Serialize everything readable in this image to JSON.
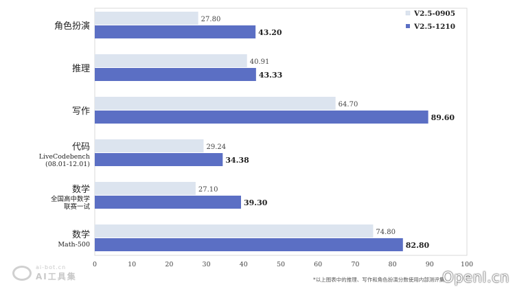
{
  "chart_data": {
    "type": "bar",
    "orientation": "horizontal",
    "categories": [
      {
        "lines": [
          "角色扮演"
        ]
      },
      {
        "lines": [
          "推理"
        ]
      },
      {
        "lines": [
          "写作"
        ]
      },
      {
        "lines": [
          "代码",
          "LiveCodebench",
          "(08.01-12.01)"
        ]
      },
      {
        "lines": [
          "数学",
          "全国高中数学",
          "联赛一试"
        ]
      },
      {
        "lines": [
          "数学",
          "Math-500"
        ]
      }
    ],
    "series": [
      {
        "name": "V2.5-0905",
        "color": "#dce4ef",
        "values": [
          27.8,
          40.91,
          64.7,
          29.24,
          27.1,
          74.8
        ],
        "labels": [
          "27.80",
          "40.91",
          "64.70",
          "29.24",
          "27.10",
          "74.80"
        ]
      },
      {
        "name": "V2.5-1210",
        "color": "#5b6fc4",
        "values": [
          43.2,
          43.33,
          89.6,
          34.38,
          39.3,
          82.8
        ],
        "labels": [
          "43.20",
          "43.33",
          "89.60",
          "34.38",
          "39.30",
          "82.80"
        ]
      }
    ],
    "xlim": [
      0,
      100
    ],
    "xticks": [
      0,
      10,
      20,
      30,
      40,
      50,
      60,
      70,
      80,
      90,
      100
    ],
    "legend_position": "top-right",
    "grid": false,
    "title": "",
    "xlabel": "",
    "ylabel": ""
  },
  "footnote": "*以上图表中的推理、写作和角色扮演分数使用内部测评集",
  "watermark_left": {
    "line1": "ai-bot.cn",
    "line2": "AI工具集"
  },
  "watermark_right": "OpenI.cn"
}
